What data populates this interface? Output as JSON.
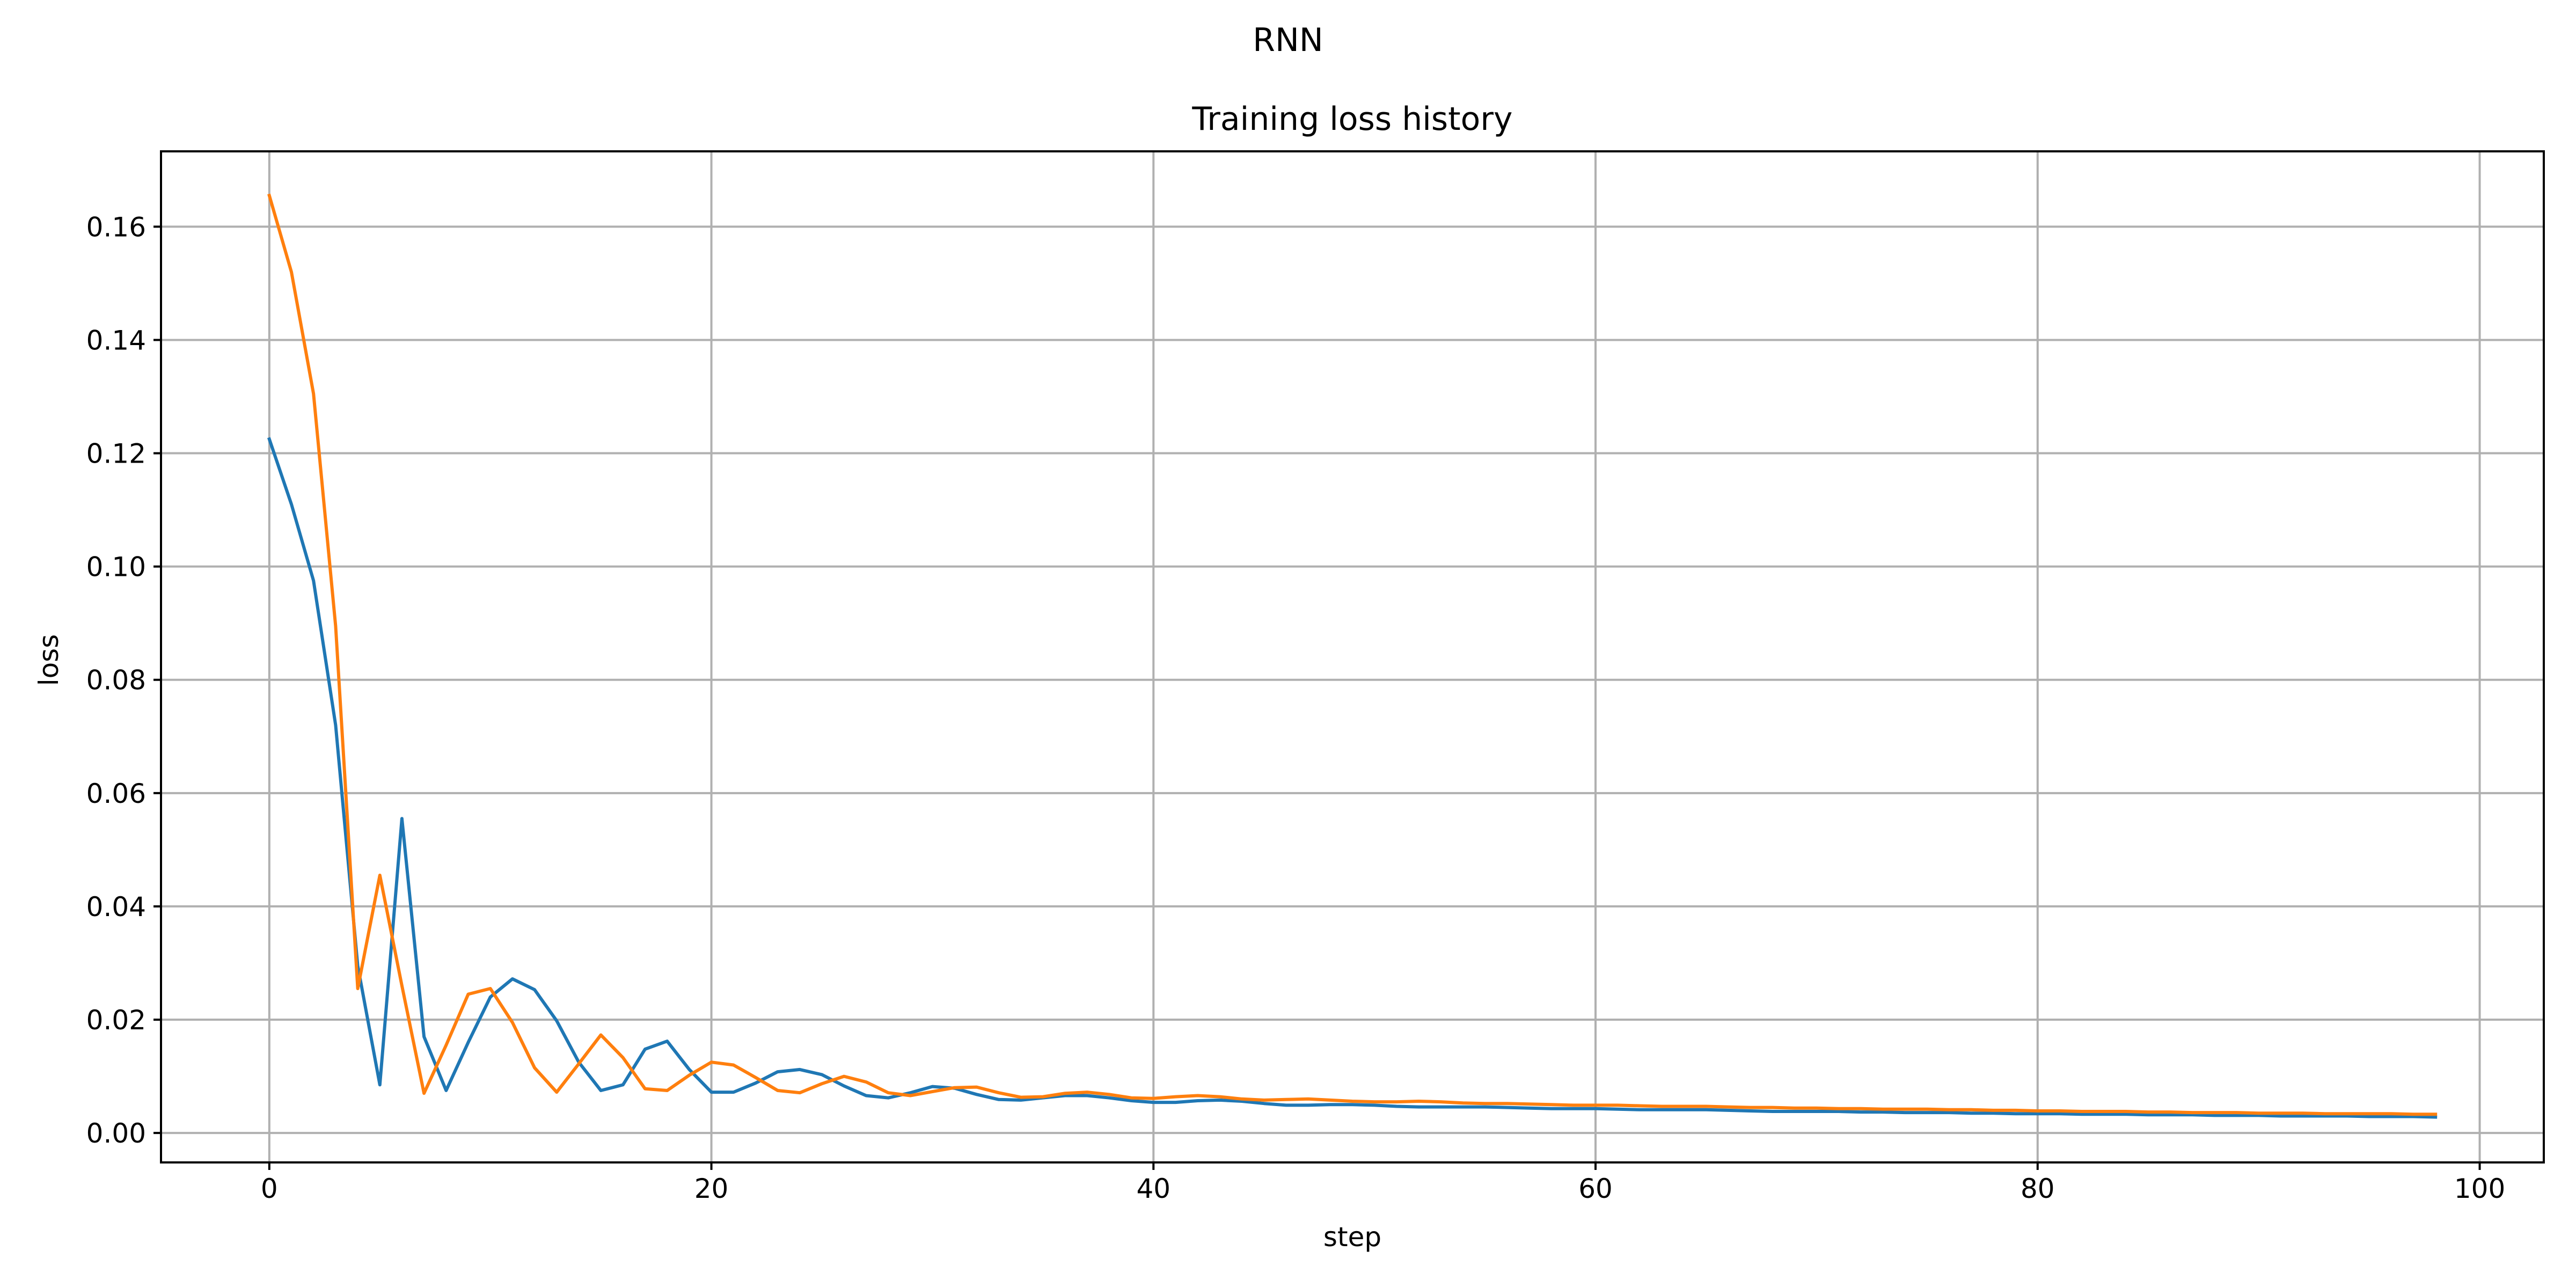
{
  "figure": {
    "suptitle": "RNN"
  },
  "chart_data": {
    "type": "line",
    "title": "Training loss history",
    "xlabel": "step",
    "ylabel": "loss",
    "xlim": [
      -4.9,
      102.9
    ],
    "ylim": [
      -0.0052,
      0.1733
    ],
    "xticks": [
      0,
      20,
      40,
      60,
      80,
      100
    ],
    "xtick_labels": [
      "0",
      "20",
      "40",
      "60",
      "80",
      "100"
    ],
    "yticks": [
      0.0,
      0.02,
      0.04,
      0.06,
      0.08,
      0.1,
      0.12,
      0.14,
      0.16
    ],
    "ytick_labels": [
      "0.00",
      "0.02",
      "0.04",
      "0.06",
      "0.08",
      "0.10",
      "0.12",
      "0.14",
      "0.16"
    ],
    "grid": true,
    "legend": "none",
    "x": [
      0,
      1,
      2,
      3,
      4,
      5,
      6,
      7,
      8,
      9,
      10,
      11,
      12,
      13,
      14,
      15,
      16,
      17,
      18,
      19,
      20,
      21,
      22,
      23,
      24,
      25,
      26,
      27,
      28,
      29,
      30,
      31,
      32,
      33,
      34,
      35,
      36,
      37,
      38,
      39,
      40,
      41,
      42,
      43,
      44,
      45,
      46,
      47,
      48,
      49,
      50,
      51,
      52,
      53,
      54,
      55,
      56,
      57,
      58,
      59,
      60,
      61,
      62,
      63,
      64,
      65,
      66,
      67,
      68,
      69,
      70,
      71,
      72,
      73,
      74,
      75,
      76,
      77,
      78,
      79,
      80,
      81,
      82,
      83,
      84,
      85,
      86,
      87,
      88,
      89,
      90,
      91,
      92,
      93,
      94,
      95,
      96,
      97,
      98
    ],
    "series": [
      {
        "color": "#1f77b4",
        "values": [
          0.1225,
          0.111,
          0.0975,
          0.072,
          0.0295,
          0.0085,
          0.0555,
          0.017,
          0.0075,
          0.016,
          0.024,
          0.0272,
          0.0253,
          0.0198,
          0.0125,
          0.0075,
          0.0085,
          0.0148,
          0.0162,
          0.0112,
          0.0072,
          0.0072,
          0.0088,
          0.0108,
          0.0112,
          0.0103,
          0.0083,
          0.0066,
          0.0062,
          0.0071,
          0.0082,
          0.0079,
          0.0068,
          0.0059,
          0.0058,
          0.0062,
          0.0066,
          0.0066,
          0.0062,
          0.0057,
          0.0054,
          0.0054,
          0.0057,
          0.0058,
          0.0056,
          0.0052,
          0.0049,
          0.0049,
          0.005,
          0.005,
          0.0049,
          0.0047,
          0.0046,
          0.0046,
          0.0046,
          0.0046,
          0.0045,
          0.0044,
          0.0043,
          0.0043,
          0.0043,
          0.0042,
          0.0041,
          0.0041,
          0.0041,
          0.0041,
          0.004,
          0.0039,
          0.0038,
          0.0038,
          0.0038,
          0.0038,
          0.0037,
          0.0037,
          0.0036,
          0.0036,
          0.0036,
          0.0035,
          0.0035,
          0.0034,
          0.0034,
          0.0034,
          0.0033,
          0.0033,
          0.0033,
          0.0032,
          0.0032,
          0.0032,
          0.0031,
          0.0031,
          0.0031,
          0.003,
          0.003,
          0.003,
          0.003,
          0.0029,
          0.0029,
          0.0029,
          0.0028
        ]
      },
      {
        "color": "#ff7f0e",
        "values": [
          0.1655,
          0.152,
          0.1305,
          0.0895,
          0.0255,
          0.0455,
          0.026,
          0.007,
          0.0155,
          0.0245,
          0.0255,
          0.0195,
          0.0115,
          0.0072,
          0.0122,
          0.0173,
          0.0133,
          0.0078,
          0.0075,
          0.0102,
          0.0125,
          0.012,
          0.0098,
          0.0075,
          0.0071,
          0.0087,
          0.01,
          0.009,
          0.0071,
          0.0066,
          0.0073,
          0.008,
          0.0081,
          0.0071,
          0.0063,
          0.0064,
          0.007,
          0.0072,
          0.0068,
          0.0062,
          0.0061,
          0.0064,
          0.0066,
          0.0064,
          0.006,
          0.0058,
          0.0059,
          0.006,
          0.0058,
          0.0056,
          0.0055,
          0.0055,
          0.0056,
          0.0055,
          0.0053,
          0.0052,
          0.0052,
          0.0051,
          0.005,
          0.0049,
          0.0049,
          0.0049,
          0.0048,
          0.0047,
          0.0047,
          0.0047,
          0.0046,
          0.0045,
          0.0045,
          0.0044,
          0.0044,
          0.0043,
          0.0043,
          0.0042,
          0.0042,
          0.0042,
          0.0041,
          0.0041,
          0.004,
          0.004,
          0.0039,
          0.0039,
          0.0038,
          0.0038,
          0.0038,
          0.0037,
          0.0037,
          0.0036,
          0.0036,
          0.0036,
          0.0035,
          0.0035,
          0.0035,
          0.0034,
          0.0034,
          0.0034,
          0.0034,
          0.0033,
          0.0033
        ]
      }
    ]
  }
}
